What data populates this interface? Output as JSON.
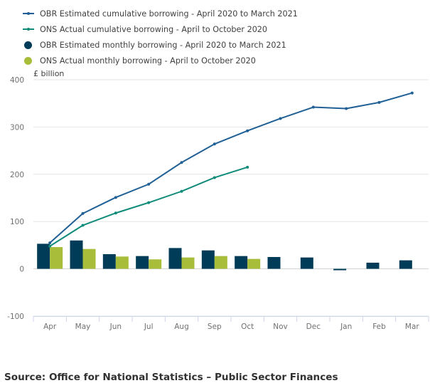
{
  "chart_data": {
    "type": "bar",
    "title": "",
    "ylabel": "£ billion",
    "xlabel": "",
    "ylim": [
      -100,
      400
    ],
    "yticks": [
      -100,
      0,
      100,
      200,
      300,
      400
    ],
    "ytick_labels": [
      "-100",
      "0",
      "100",
      "200",
      "300",
      "400"
    ],
    "grid": true,
    "legend_position": "top-left",
    "categories": [
      "Apr",
      "May",
      "Jun",
      "Jul",
      "Aug",
      "Sep",
      "Oct",
      "Nov",
      "Dec",
      "Jan",
      "Feb",
      "Mar"
    ],
    "series": [
      {
        "name": "OBR Estimated cumulative borrowing - April 2020 to March 2021",
        "kind": "line",
        "color": "#206095",
        "values": [
          55,
          117,
          151,
          179,
          225,
          264,
          292,
          318,
          342,
          339,
          352,
          372
        ]
      },
      {
        "name": "ONS Actual cumulative borrowing - April to October 2020",
        "kind": "line",
        "color": "#118c7b",
        "values": [
          48,
          92,
          118,
          140,
          164,
          193,
          215,
          null,
          null,
          null,
          null,
          null
        ]
      },
      {
        "name": "OBR Estimated monthly borrowing - April 2020 to March 2021",
        "kind": "bar",
        "color": "#003c57",
        "values": [
          53,
          60,
          31,
          27,
          44,
          39,
          27,
          25,
          24,
          -3,
          13,
          18
        ]
      },
      {
        "name": "ONS Actual monthly borrowing - April to October 2020",
        "kind": "bar",
        "color": "#a8bd3a",
        "values": [
          46,
          42,
          26,
          20,
          24,
          27,
          21,
          null,
          null,
          null,
          null,
          null
        ]
      }
    ]
  },
  "source": "Source: Office for National Statistics – Public Sector Finances"
}
